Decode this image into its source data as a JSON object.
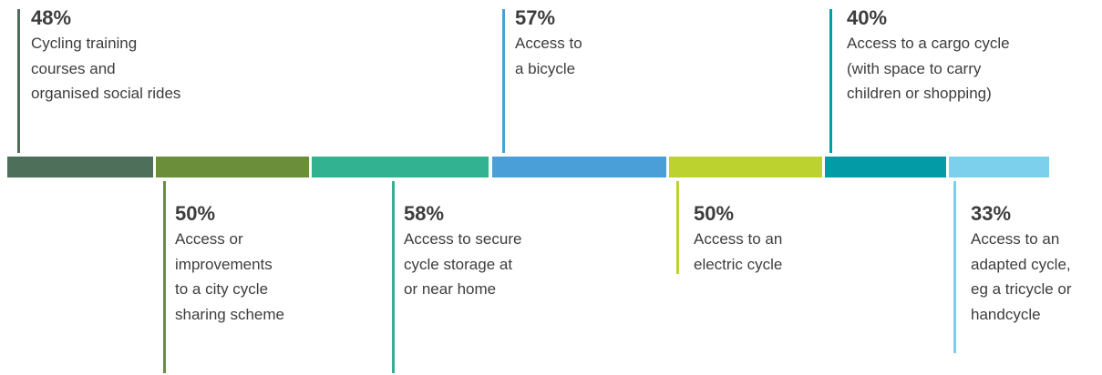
{
  "chart_data": {
    "type": "bar",
    "categories": [
      "Cycling training courses and organised social rides",
      "Access or improvements to a city cycle sharing scheme",
      "Access to secure cycle storage at or near home",
      "Access to a bicycle",
      "Access to an electric cycle",
      "Access to a cargo cycle (with space to carry children or shopping)",
      "Access to an adapted cycle, eg a tricycle or handcycle"
    ],
    "values": [
      48,
      50,
      58,
      57,
      50,
      40,
      33
    ],
    "unit": "%",
    "items": [
      {
        "pct": "48%",
        "desc": "Cycling training\ncourses and\norganised social rides",
        "color": "#4e6f5a",
        "side": "top"
      },
      {
        "pct": "50%",
        "desc": "Access or\nimprovements\nto a city cycle\nsharing scheme",
        "color": "#6a8e3a",
        "side": "bottom"
      },
      {
        "pct": "58%",
        "desc": "Access to secure\ncycle storage at\nor near home",
        "color": "#33b291",
        "side": "bottom"
      },
      {
        "pct": "57%",
        "desc": "Access to\na bicycle",
        "color": "#4b9fd9",
        "side": "top"
      },
      {
        "pct": "50%",
        "desc": "Access to an\nelectric cycle",
        "color": "#bcd22e",
        "side": "bottom"
      },
      {
        "pct": "40%",
        "desc": "Access to a cargo cycle\n(with space to carry\nchildren or shopping)",
        "color": "#029ba6",
        "side": "top"
      },
      {
        "pct": "33%",
        "desc": "Access to an\nadapted cycle,\neg a tricycle or\nhandcycle",
        "color": "#7dd0ec",
        "side": "bottom"
      }
    ]
  }
}
